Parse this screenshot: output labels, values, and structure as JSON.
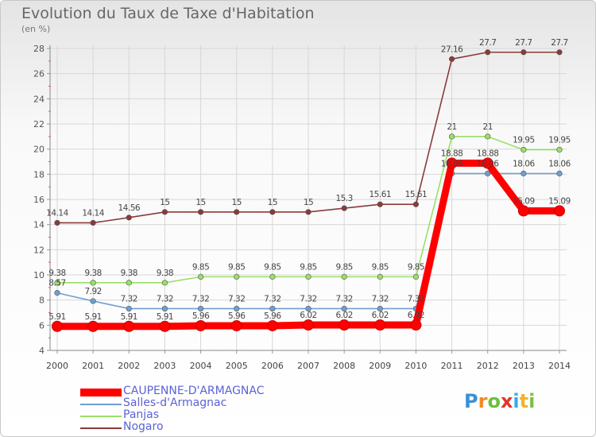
{
  "header": {
    "title": "Evolution du Taux de Taxe d'Habitation",
    "subtitle": "(en %)"
  },
  "logo": {
    "letters": [
      "P",
      "r",
      "o",
      "x",
      "i",
      "t",
      "i"
    ],
    "colors": [
      "#3a8fd6",
      "#f08a24",
      "#6cbf3a",
      "#e0342c",
      "#2fb0e0",
      "#f0b42a",
      "#7ac142"
    ]
  },
  "chart_data": {
    "type": "line",
    "title": "Evolution du Taux de Taxe d'Habitation",
    "subtitle": "(en %)",
    "xlabel": "",
    "ylabel": "",
    "x": [
      "2000",
      "2001",
      "2002",
      "2003",
      "2004",
      "2005",
      "2006",
      "2007",
      "2008",
      "2009",
      "2010",
      "2011",
      "2012",
      "2013",
      "2014"
    ],
    "ylim": [
      4,
      28
    ],
    "yticks": [
      "4",
      "6",
      "8",
      "10",
      "12",
      "14",
      "16",
      "18",
      "20",
      "22",
      "24",
      "26",
      "28"
    ],
    "grid": true,
    "legend": "bottom-left",
    "series": [
      {
        "name": "CAUPENNE-D'ARMAGNAC",
        "color": "#ff0000",
        "values": [
          5.91,
          5.91,
          5.91,
          5.91,
          5.96,
          5.96,
          5.96,
          6.02,
          6.02,
          6.02,
          6.02,
          18.88,
          18.88,
          15.09,
          15.09
        ],
        "labels": [
          "5.91",
          "5.91",
          "5.91",
          "5.91",
          "5.96",
          "5.96",
          "5.96",
          "6.02",
          "6.02",
          "6.02",
          "6.02",
          "18.88",
          "18.88",
          "15.09",
          "15.09"
        ]
      },
      {
        "name": "Salles-d'Armagnac",
        "color": "#6e9fd0",
        "values": [
          8.57,
          7.92,
          7.32,
          7.32,
          7.32,
          7.32,
          7.32,
          7.32,
          7.32,
          7.32,
          7.32,
          18.06,
          18.06,
          18.06,
          18.06
        ],
        "labels": [
          "8.57",
          "7.92",
          "7.32",
          "7.32",
          "7.32",
          "7.32",
          "7.32",
          "7.32",
          "7.32",
          "7.32",
          "7.32",
          "18.06",
          "18.06",
          "18.06",
          "18.06"
        ]
      },
      {
        "name": "Panjas",
        "color": "#99e066",
        "values": [
          9.38,
          9.38,
          9.38,
          9.38,
          9.85,
          9.85,
          9.85,
          9.85,
          9.85,
          9.85,
          9.85,
          21,
          21,
          19.95,
          19.95
        ],
        "labels": [
          "9.38",
          "9.38",
          "9.38",
          "9.38",
          "9.85",
          "9.85",
          "9.85",
          "9.85",
          "9.85",
          "9.85",
          "9.85",
          "21",
          "21",
          "19.95",
          "19.95"
        ]
      },
      {
        "name": "Nogaro",
        "color": "#8b3a3a",
        "values": [
          14.14,
          14.14,
          14.56,
          15,
          15,
          15,
          15,
          15,
          15.3,
          15.61,
          15.61,
          27.16,
          27.7,
          27.7,
          27.7
        ],
        "labels": [
          "14.14",
          "14.14",
          "14.56",
          "15",
          "15",
          "15",
          "15",
          "15",
          "15.3",
          "15.61",
          "15.61",
          "27.16",
          "27.7",
          "27.7",
          "27.7"
        ]
      }
    ]
  }
}
